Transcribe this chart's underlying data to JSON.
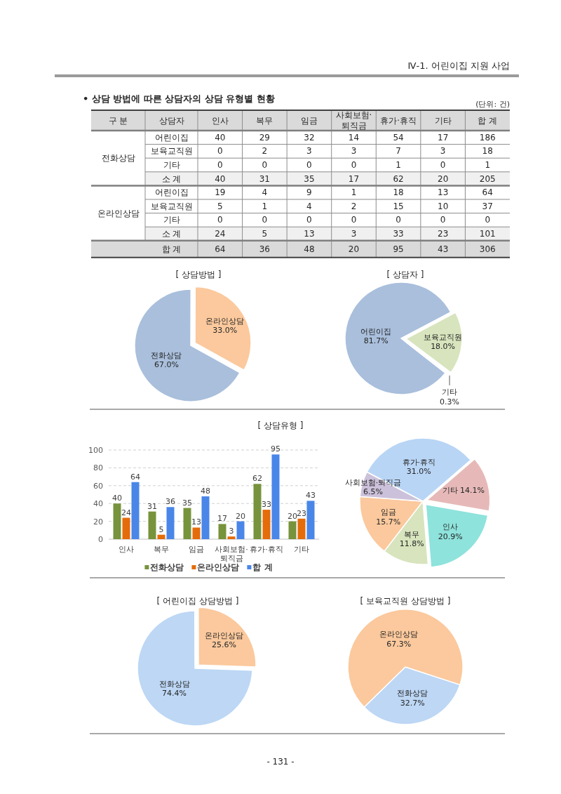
{
  "chart_data": [
    {
      "type": "heatmap",
      "title": "• 상담 방법에 따른 상담자의 상담 유형별 현황",
      "categories": [
        "인사",
        "복무",
        "임금",
        "사회보험·\n퇴직금",
        "휴가·휴직",
        "기타",
        "합 계"
      ],
      "y_categories": [
        "어린이집",
        "보육교직원",
        "기타",
        "소 계",
        "어린이집",
        "보육교직원",
        "기타",
        "소 계",
        "합 계"
      ],
      "cells": [
        [
          40,
          29,
          32,
          14,
          54,
          17,
          186
        ],
        [
          0,
          2,
          3,
          3,
          7,
          3,
          18
        ],
        [
          0,
          0,
          0,
          0,
          1,
          0,
          1
        ],
        [
          40,
          31,
          35,
          17,
          62,
          20,
          205
        ],
        [
          19,
          4,
          9,
          1,
          18,
          13,
          64
        ],
        [
          5,
          1,
          4,
          2,
          15,
          10,
          37
        ],
        [
          0,
          0,
          0,
          0,
          0,
          0,
          0
        ],
        [
          24,
          5,
          13,
          3,
          33,
          23,
          101
        ],
        [
          64,
          36,
          48,
          20,
          95,
          43,
          306
        ]
      ],
      "data_labels": true,
      "annotations": [
        "Ⅳ-1. 어린이집 지원 사업",
        "(단위: 건)",
        "구 분",
        "상담자",
        "전화상담",
        "온라인상담"
      ]
    },
    {
      "type": "pie",
      "title": "[ 상담방법 ]",
      "categories": [
        "전화상담",
        "온라인상담"
      ],
      "values": [
        67.0,
        33.0
      ],
      "value_labels": [
        "67.0%",
        "33.0%"
      ],
      "colors": [
        "#a9bfdc",
        "#fbc99d"
      ]
    },
    {
      "type": "pie",
      "title": "[ 상담자 ]",
      "categories": [
        "어린이집",
        "보육교직원",
        "기타"
      ],
      "values": [
        81.7,
        18.0,
        0.3
      ],
      "value_labels": [
        "81.7%",
        "18.0%",
        "0.3%"
      ],
      "colors": [
        "#a9bfdc",
        "#d7e4bd",
        "#c0a080"
      ]
    },
    {
      "type": "bar",
      "title": "[ 상담유형 ]",
      "categories": [
        "인사",
        "복무",
        "임금",
        "사회보험·\n퇴직금",
        "휴가·휴직",
        "기타"
      ],
      "series": [
        {
          "name": "전화상담",
          "color": "#77933c",
          "values": [
            40,
            31,
            35,
            17,
            62,
            20
          ]
        },
        {
          "name": "온라인상담",
          "color": "#e46c0a",
          "values": [
            24,
            5,
            13,
            3,
            33,
            23
          ]
        },
        {
          "name": "합 계",
          "color": "#4a86e8",
          "values": [
            64,
            36,
            48,
            20,
            95,
            43
          ]
        }
      ],
      "ylim": [
        0,
        100
      ],
      "yticks": [
        0,
        20,
        40,
        60,
        80,
        100
      ],
      "grid": "y",
      "legend": "bottom",
      "data_labels": true
    },
    {
      "type": "pie",
      "categories": [
        "인사",
        "복무",
        "임금",
        "사회보험·퇴직금",
        "휴가·휴직",
        "기타"
      ],
      "values": [
        20.9,
        11.8,
        15.7,
        6.5,
        31.0,
        14.1
      ],
      "value_labels": [
        "20.9%",
        "11.8%",
        "15.7%",
        "6.5%",
        "31.0%",
        "14.1%"
      ],
      "colors": [
        "#8ee3dc",
        "#d7e4bd",
        "#fbc99d",
        "#ccc1da",
        "#b9d5f5",
        "#e6b9b8"
      ]
    },
    {
      "type": "pie",
      "title": "[ 어린이집 상담방법 ]",
      "categories": [
        "전화상담",
        "온라인상담"
      ],
      "values": [
        74.4,
        25.6
      ],
      "value_labels": [
        "74.4%",
        "25.6%"
      ],
      "colors": [
        "#bdd7f5",
        "#fbc99d"
      ]
    },
    {
      "type": "pie",
      "title": "[ 보육교직원 상담방법 ]",
      "categories": [
        "전화상담",
        "온라인상담"
      ],
      "values": [
        32.7,
        67.3
      ],
      "value_labels": [
        "32.7%",
        "67.3%"
      ],
      "colors": [
        "#bdd7f5",
        "#fbc99d"
      ],
      "annotations": [
        "- 131 -"
      ]
    }
  ]
}
